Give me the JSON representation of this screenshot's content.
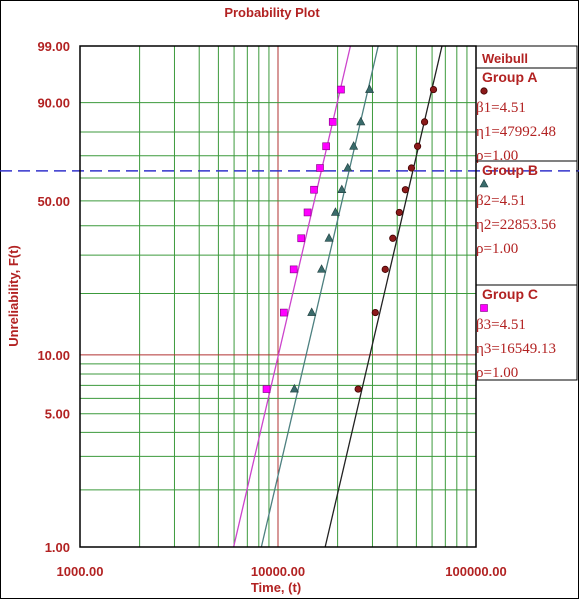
{
  "chart_data": {
    "type": "scatter",
    "title": "Probability Plot",
    "xlabel": "Time, (t)",
    "ylabel": "Unreliability, F(t)",
    "x_scale": "log",
    "y_scale": "weibull",
    "xlim": [
      1000,
      100000
    ],
    "ylim": [
      1,
      99
    ],
    "x_ticks": [
      "1000.00",
      "10000.00",
      "100000.00"
    ],
    "y_ticks": [
      {
        "value": 99,
        "label": "99.00"
      },
      {
        "value": 90,
        "label": "90.00"
      },
      {
        "value": 50,
        "label": "50.00"
      },
      {
        "value": 10,
        "label": "10.00"
      },
      {
        "value": 5,
        "label": "5.00"
      },
      {
        "value": 1,
        "label": "1.00"
      }
    ],
    "grid": true,
    "reference_line": {
      "y": 63.2,
      "style": "dashed",
      "color": "#3333cc"
    },
    "legend": {
      "title": "Weibull",
      "placement": "right"
    },
    "series": [
      {
        "name": "Group A",
        "color": "#8b1a1a",
        "line_color": "#222222",
        "marker": "circle",
        "params": [
          {
            "key": "beta",
            "label": "β1=4.51",
            "value": 4.51
          },
          {
            "key": "eta",
            "label": "η1=47992.48",
            "value": 47992.48
          },
          {
            "key": "rho",
            "label": "ρ=1.00",
            "value": 1.0
          }
        ],
        "points": [
          {
            "x": 25400,
            "y": 6.7
          },
          {
            "x": 31000,
            "y": 16.2
          },
          {
            "x": 34800,
            "y": 25.9
          },
          {
            "x": 38000,
            "y": 35.5
          },
          {
            "x": 41000,
            "y": 45.2
          },
          {
            "x": 44000,
            "y": 54.8
          },
          {
            "x": 47200,
            "y": 64.5
          },
          {
            "x": 50700,
            "y": 74.1
          },
          {
            "x": 55000,
            "y": 83.8
          },
          {
            "x": 61000,
            "y": 93.3
          }
        ]
      },
      {
        "name": "Group B",
        "color": "#3a6b6b",
        "line_color": "#4d8080",
        "marker": "triangle",
        "params": [
          {
            "key": "beta",
            "label": "β2=4.51",
            "value": 4.51
          },
          {
            "key": "eta",
            "label": "η2=22853.56",
            "value": 22853.56
          },
          {
            "key": "rho",
            "label": "ρ=1.00",
            "value": 1.0
          }
        ],
        "points": [
          {
            "x": 12100,
            "y": 6.7
          },
          {
            "x": 14800,
            "y": 16.2
          },
          {
            "x": 16600,
            "y": 25.9
          },
          {
            "x": 18100,
            "y": 35.5
          },
          {
            "x": 19500,
            "y": 45.2
          },
          {
            "x": 21000,
            "y": 54.8
          },
          {
            "x": 22500,
            "y": 64.5
          },
          {
            "x": 24100,
            "y": 74.1
          },
          {
            "x": 26200,
            "y": 83.8
          },
          {
            "x": 29000,
            "y": 93.3
          }
        ]
      },
      {
        "name": "Group C",
        "color": "#ff00ff",
        "line_color": "#cc44cc",
        "marker": "square",
        "params": [
          {
            "key": "beta",
            "label": "β3=4.51",
            "value": 4.51
          },
          {
            "key": "eta",
            "label": "η3=16549.13",
            "value": 16549.13
          },
          {
            "key": "rho",
            "label": "ρ=1.00",
            "value": 1.0
          }
        ],
        "points": [
          {
            "x": 8750,
            "y": 6.7
          },
          {
            "x": 10700,
            "y": 16.2
          },
          {
            "x": 12000,
            "y": 25.9
          },
          {
            "x": 13100,
            "y": 35.5
          },
          {
            "x": 14100,
            "y": 45.2
          },
          {
            "x": 15200,
            "y": 54.8
          },
          {
            "x": 16300,
            "y": 64.5
          },
          {
            "x": 17500,
            "y": 74.1
          },
          {
            "x": 18900,
            "y": 83.8
          },
          {
            "x": 20800,
            "y": 93.3
          }
        ]
      }
    ]
  },
  "legend_title": "Weibull"
}
